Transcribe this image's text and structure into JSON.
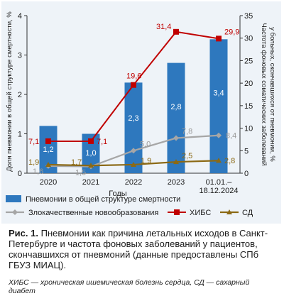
{
  "chart_data": {
    "type": "bar",
    "categories": [
      "2020",
      "2021",
      "2022",
      "2023",
      "01.01.–\n18.12.2024"
    ],
    "xlabel": "Годы",
    "ylabel_left": "Доля пневмонии в общей структуре смертности, %",
    "ylabel_right": "Частота фоновых соматических заболеваний у больных, скончавшихся от пневмонии, %",
    "ylim_left": [
      0,
      4
    ],
    "yticks_left": [
      "0",
      "1",
      "2",
      "3",
      "4"
    ],
    "ylim_right": [
      0,
      35
    ],
    "yticks_right": [
      "0",
      "5",
      "10",
      "15",
      "20",
      "25",
      "30",
      "35"
    ],
    "bar_series": {
      "name": "Пневмонии в общей структуре смертности",
      "color": "#2e78be",
      "values": [
        1.2,
        1.0,
        2.3,
        2.8,
        3.4
      ],
      "labels": [
        "1,2",
        "1,0",
        "2,3",
        "2,8",
        "3,4"
      ]
    },
    "line_series": [
      {
        "name": "Злокачественные новообразования",
        "color": "#a6a6a6",
        "values": [
          1.6,
          1.5,
          5.0,
          7.8,
          8.4
        ],
        "labels": [
          "1,6",
          "1,5",
          "5,0",
          "7,8",
          "8,4"
        ]
      },
      {
        "name": "ХИБС",
        "color": "#c00000",
        "values": [
          7.1,
          7.1,
          19.6,
          31.4,
          29.9
        ],
        "labels": [
          "7,1",
          "7,1",
          "19,6",
          "31,4",
          "29,9"
        ]
      },
      {
        "name": "СД",
        "color": "#8b6914",
        "values": [
          1.9,
          1.7,
          1.9,
          2.5,
          2.8
        ],
        "labels": [
          "1,9",
          "1,7",
          "1,9",
          "2,5",
          "2,8"
        ]
      }
    ],
    "legend_position": "bottom"
  },
  "caption": {
    "figure_label": "Рис. 1.",
    "text": "Пневмонии как причина летальных исходов в Санкт-Петербурге и частота фоновых заболеваний у пациентов, скончавшихся от пневмоний (данные предоставлены СПб ГБУЗ МИАЦ).",
    "footnote": "ХИБС — хроническая ишемическая болезнь сердца, СД — сахарный диабет"
  }
}
